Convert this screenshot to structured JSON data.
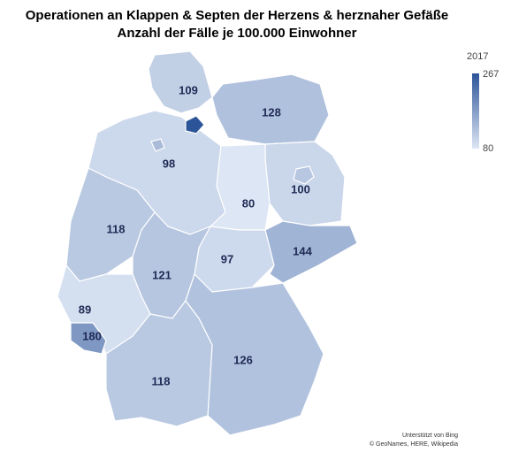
{
  "map": {
    "title": "Operationen an Klappen & Septen der Herzens & herznaher Gefäße",
    "subtitle": "Anzahl der Fälle je 100.000 Einwohner",
    "legend_title": "2017",
    "scale": {
      "min": 80,
      "max": 267,
      "colors": [
        "#dde6f4",
        "#2c5599"
      ]
    },
    "labeled_values": [
      109,
      128,
      98,
      100,
      80,
      118,
      144,
      97,
      121,
      89,
      180,
      126,
      118
    ],
    "unlabeled_values": [
      267,
      135,
      120
    ],
    "attribution": [
      "Unterstützt von Bing",
      "© GeoNames, HERE, Wikipedia"
    ]
  }
}
